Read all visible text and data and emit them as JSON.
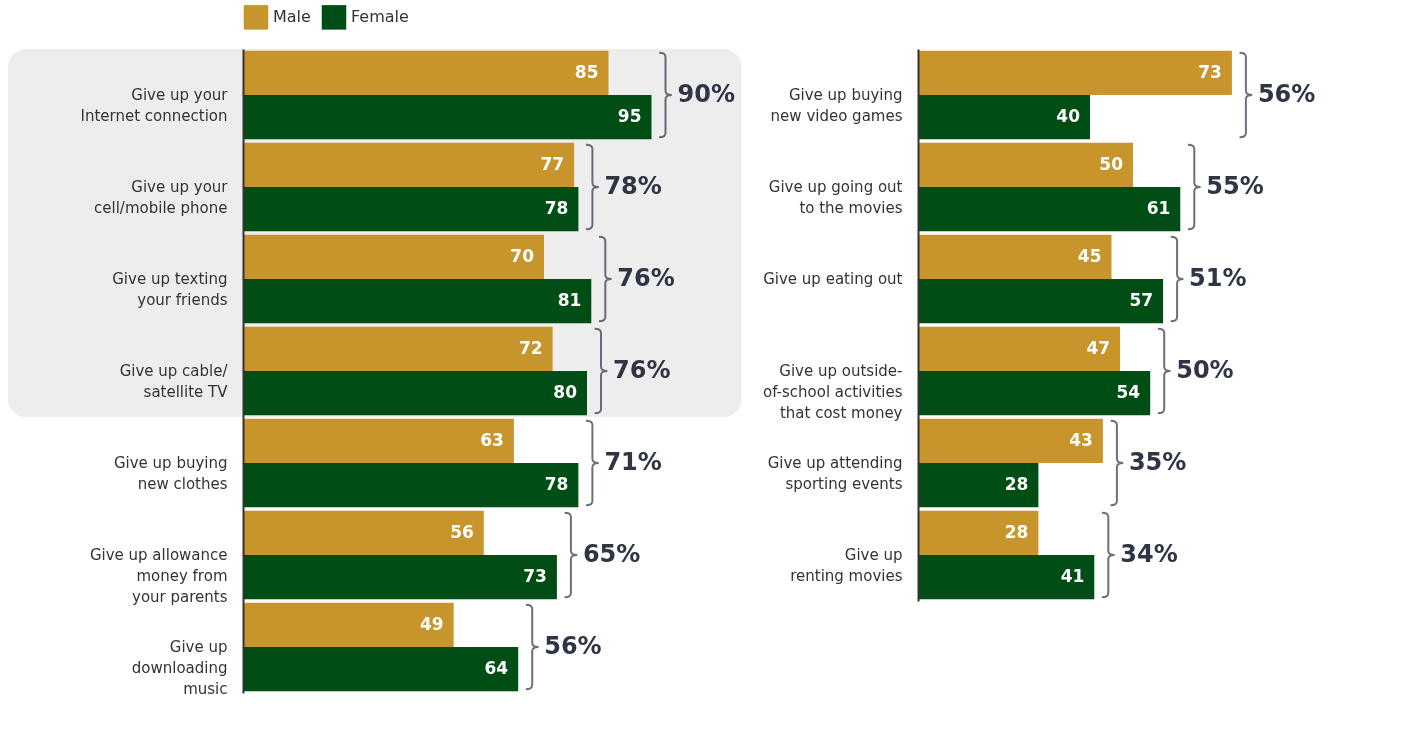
{
  "chart_data": [
    {
      "type": "bar",
      "orientation": "horizontal",
      "legend": "top left",
      "data_labels": true,
      "categories": [
        "Give up your\nInternet connection",
        "Give up your\ncell/mobile phone",
        "Give up texting\nyour friends",
        "Give up cable/\nsatellite TV",
        "Give up buying\nnew clothes",
        "Give up allowance\nmoney from\nyour parents",
        "Give up\ndownloading\nmusic"
      ],
      "series": [
        {
          "name": "Male",
          "color": "#c8952c",
          "values": [
            85,
            77,
            70,
            72,
            63,
            56,
            49
          ]
        },
        {
          "name": "Female",
          "color": "#004d16",
          "values": [
            95,
            78,
            81,
            80,
            78,
            73,
            64
          ]
        }
      ],
      "bands": [
        {
          "axis": "y",
          "from": "Give up your\nInternet connection",
          "to": "Give up cable/\nsatellite TV",
          "color": "#ededed"
        }
      ],
      "annotations": [
        "90%",
        "78%",
        "76%",
        "76%",
        "71%",
        "65%",
        "56%"
      ]
    },
    {
      "type": "bar",
      "orientation": "horizontal",
      "data_labels": true,
      "categories": [
        "Give up buying\nnew video games",
        "Give up going out\nto the movies",
        "Give up eating out",
        "Give up outside-\nof-school activities\nthat cost money",
        "Give up attending\nsporting events",
        "Give up\nrenting movies"
      ],
      "series": [
        {
          "name": "Male",
          "color": "#c8952c",
          "values": [
            73,
            50,
            45,
            47,
            43,
            28
          ]
        },
        {
          "name": "Female",
          "color": "#004d16",
          "values": [
            40,
            61,
            57,
            54,
            28,
            41
          ]
        }
      ],
      "annotations": [
        "56%",
        "55%",
        "51%",
        "50%",
        "35%",
        "34%"
      ]
    }
  ]
}
